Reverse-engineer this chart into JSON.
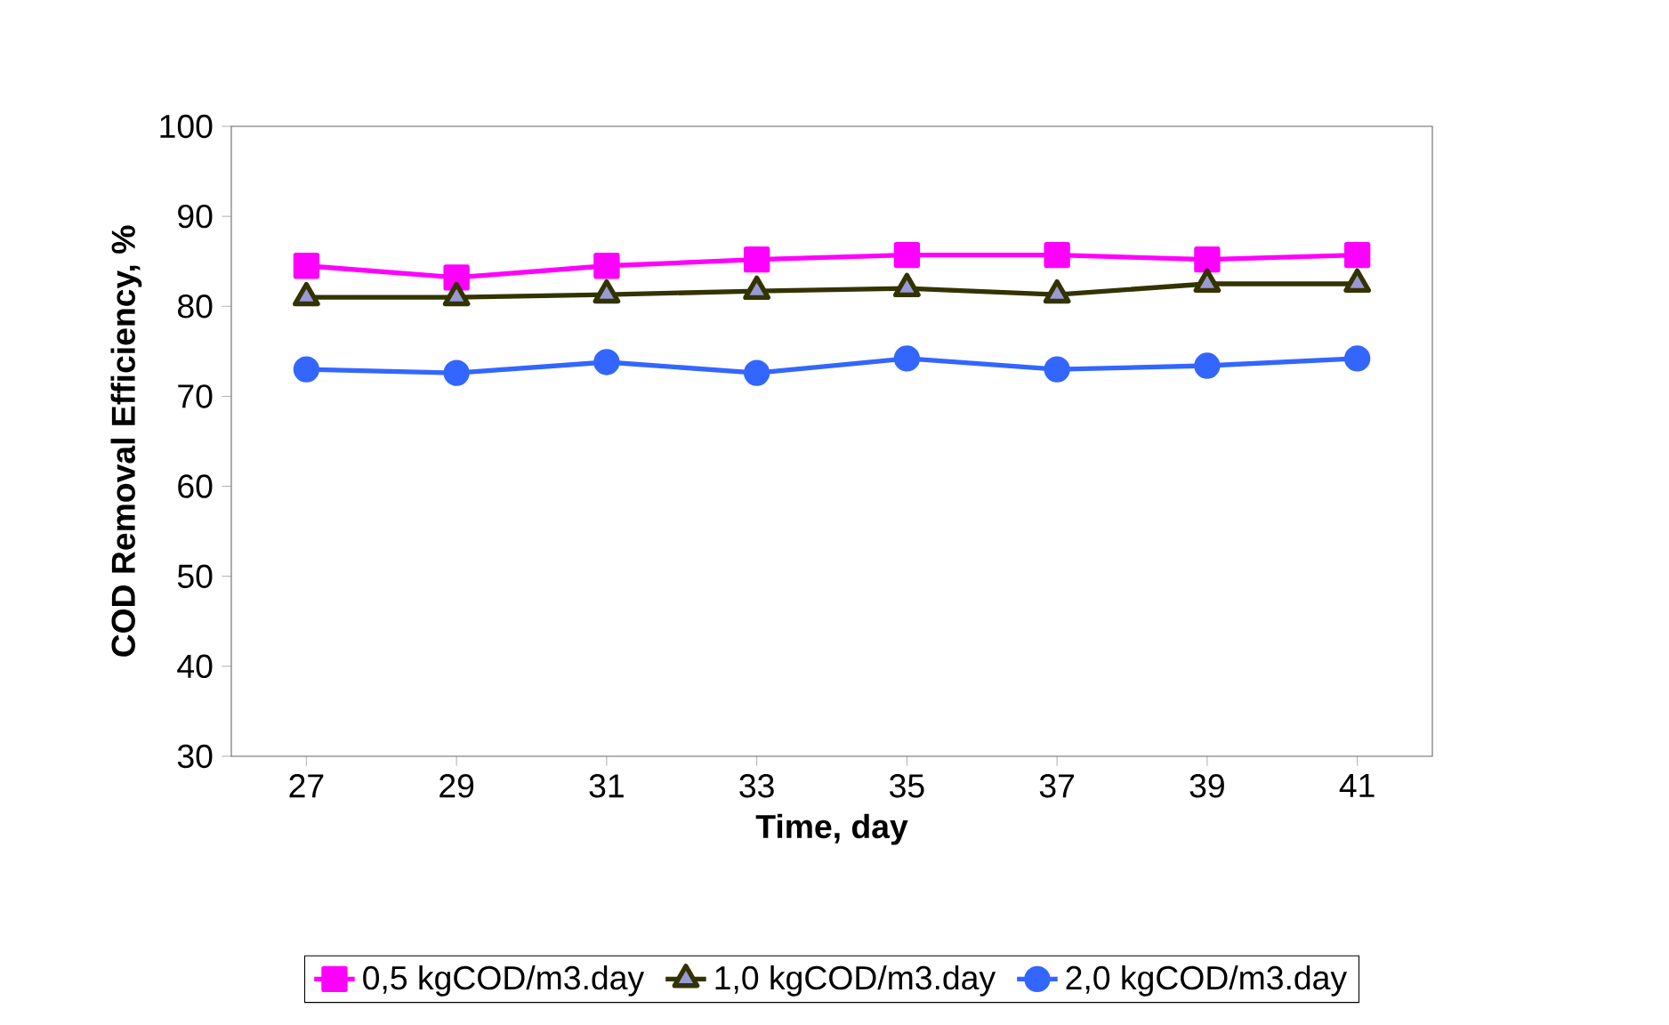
{
  "chart_data": {
    "type": "line",
    "xlabel": "Time, day",
    "ylabel": "COD Removal Efficiency, %",
    "categories": [
      "27",
      "29",
      "31",
      "33",
      "35",
      "37",
      "39",
      "41"
    ],
    "series": [
      {
        "name": "0,5 kgCOD/m3.day",
        "color": "#ff00ff",
        "marker": "square",
        "values": [
          84.5,
          83.2,
          84.5,
          85.2,
          85.7,
          85.7,
          85.2,
          85.7
        ]
      },
      {
        "name": "1,0 kgCOD/m3.day",
        "color": "#333300",
        "marker": "triangle",
        "values": [
          81.0,
          81.0,
          81.3,
          81.7,
          82.0,
          81.3,
          82.5,
          82.5
        ]
      },
      {
        "name": "2,0 kgCOD/m3.day",
        "color": "#3366ff",
        "marker": "circle",
        "values": [
          73.0,
          72.6,
          73.8,
          72.6,
          74.2,
          73.0,
          73.4,
          74.2
        ]
      }
    ],
    "ylim": [
      30,
      100
    ],
    "yticks": [
      30,
      40,
      50,
      60,
      70,
      80,
      90,
      100
    ],
    "grid": false,
    "legend": "bottom",
    "line_style": "solid"
  }
}
